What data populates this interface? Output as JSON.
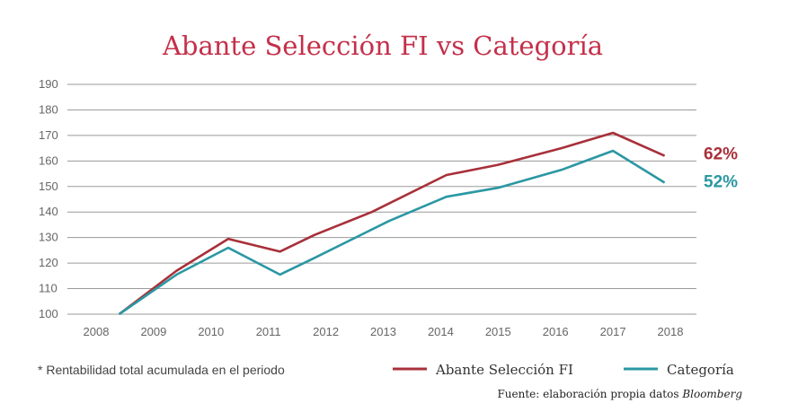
{
  "chart_data": {
    "type": "line",
    "title": "Abante Selección FI vs Categoría",
    "x": [
      "2008",
      "2009",
      "2010",
      "2011",
      "2012",
      "2013",
      "2014",
      "2015",
      "2016",
      "2017",
      "2018"
    ],
    "ylim": [
      100,
      190
    ],
    "yticks": [
      100,
      110,
      120,
      130,
      140,
      150,
      160,
      170,
      180,
      190
    ],
    "grid": true,
    "legend_position": "bottom-right",
    "series": [
      {
        "name": "Abante Selección FI",
        "color": "#a8303a",
        "end_label": "62%",
        "points": [
          {
            "x": 2008.4,
            "y": 100
          },
          {
            "x": 2009.4,
            "y": 117
          },
          {
            "x": 2010.3,
            "y": 129.5
          },
          {
            "x": 2011.2,
            "y": 124.5
          },
          {
            "x": 2011.8,
            "y": 131
          },
          {
            "x": 2012.8,
            "y": 140
          },
          {
            "x": 2014.1,
            "y": 154.5
          },
          {
            "x": 2015.0,
            "y": 158.5
          },
          {
            "x": 2016.1,
            "y": 165
          },
          {
            "x": 2017.0,
            "y": 171
          },
          {
            "x": 2017.9,
            "y": 162
          }
        ]
      },
      {
        "name": "Categoría",
        "color": "#2b97a3",
        "end_label": "52%",
        "points": [
          {
            "x": 2008.4,
            "y": 100
          },
          {
            "x": 2009.4,
            "y": 115.5
          },
          {
            "x": 2010.3,
            "y": 126
          },
          {
            "x": 2011.2,
            "y": 115.5
          },
          {
            "x": 2011.8,
            "y": 122
          },
          {
            "x": 2013.1,
            "y": 136.5
          },
          {
            "x": 2014.1,
            "y": 146
          },
          {
            "x": 2015.0,
            "y": 149.5
          },
          {
            "x": 2016.1,
            "y": 156.5
          },
          {
            "x": 2017.0,
            "y": 164
          },
          {
            "x": 2017.9,
            "y": 151.5
          }
        ]
      }
    ],
    "footnote": "* Rentabilidad total acumulada en el periodo",
    "source_prefix": "Fuente: elaboración propia datos ",
    "source_emphasis": "Bloomberg"
  }
}
